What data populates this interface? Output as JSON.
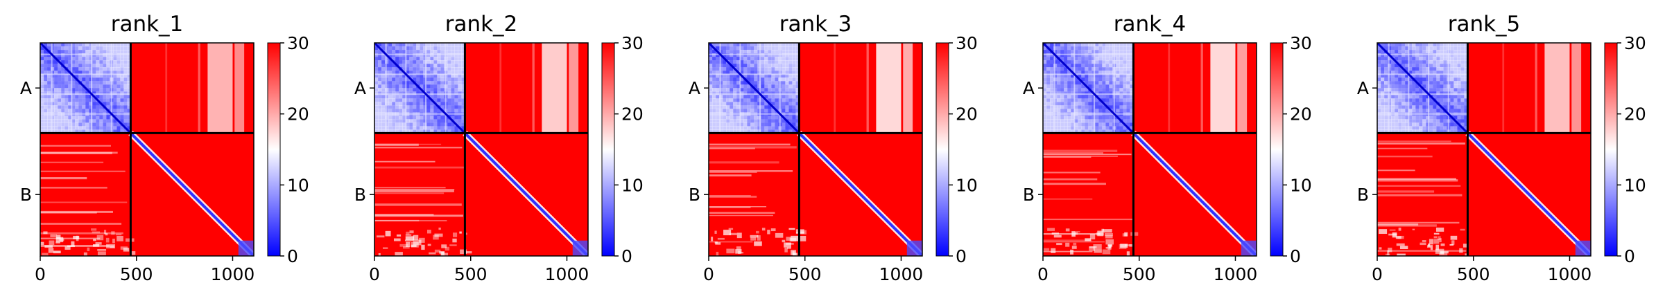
{
  "chart_data": [
    {
      "type": "heatmap",
      "title": "rank_1",
      "x_range": [
        0,
        1110
      ],
      "x_ticks": [
        0,
        500,
        1000
      ],
      "chain_labels": [
        "A",
        "B"
      ],
      "chain_boundary": 470,
      "color_scale": {
        "min": 0,
        "max": 30,
        "ticks": [
          0,
          10,
          20,
          30
        ],
        "colors": [
          "#0000ff",
          "#ffffff",
          "#ff0000"
        ]
      },
      "white_band_extra": 0.0
    },
    {
      "type": "heatmap",
      "title": "rank_2",
      "x_range": [
        0,
        1110
      ],
      "x_ticks": [
        0,
        500,
        1000
      ],
      "chain_labels": [
        "A",
        "B"
      ],
      "chain_boundary": 470,
      "color_scale": {
        "min": 0,
        "max": 30,
        "ticks": [
          0,
          10,
          20,
          30
        ],
        "colors": [
          "#0000ff",
          "#ffffff",
          "#ff0000"
        ]
      },
      "white_band_extra": 0.1
    },
    {
      "type": "heatmap",
      "title": "rank_3",
      "x_range": [
        0,
        1110
      ],
      "x_ticks": [
        0,
        500,
        1000
      ],
      "chain_labels": [
        "A",
        "B"
      ],
      "chain_boundary": 470,
      "color_scale": {
        "min": 0,
        "max": 30,
        "ticks": [
          0,
          10,
          20,
          30
        ],
        "colors": [
          "#0000ff",
          "#ffffff",
          "#ff0000"
        ]
      },
      "white_band_extra": 0.25
    },
    {
      "type": "heatmap",
      "title": "rank_4",
      "x_range": [
        0,
        1110
      ],
      "x_ticks": [
        0,
        500,
        1000
      ],
      "chain_labels": [
        "A",
        "B"
      ],
      "chain_boundary": 470,
      "color_scale": {
        "min": 0,
        "max": 30,
        "ticks": [
          0,
          10,
          20,
          30
        ],
        "colors": [
          "#0000ff",
          "#ffffff",
          "#ff0000"
        ]
      },
      "white_band_extra": 0.15
    },
    {
      "type": "heatmap",
      "title": "rank_5",
      "x_range": [
        0,
        1110
      ],
      "x_ticks": [
        0,
        500,
        1000
      ],
      "chain_labels": [
        "A",
        "B"
      ],
      "chain_boundary": 470,
      "color_scale": {
        "min": 0,
        "max": 30,
        "ticks": [
          0,
          10,
          20,
          30
        ],
        "colors": [
          "#0000ff",
          "#ffffff",
          "#ff0000"
        ]
      },
      "white_band_extra": 0.05
    }
  ]
}
